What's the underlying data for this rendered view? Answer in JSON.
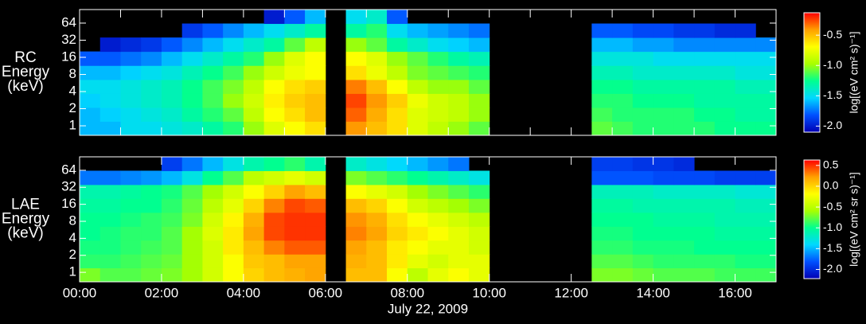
{
  "chart_data": [
    {
      "type": "heatmap",
      "ylabel": [
        "RC",
        "Energy",
        "(keV)"
      ],
      "colorbar_label": "log[(eV cm² s)⁻¹]",
      "colormap": [
        "#0000b4",
        "#0050ff",
        "#00d8ff",
        "#00ff90",
        "#a8ff00",
        "#ffff00",
        "#ffa000",
        "#ff0000"
      ],
      "xbins": [
        0,
        0.5,
        1,
        1.5,
        2,
        2.5,
        3,
        3.5,
        4,
        4.5,
        5,
        5.5,
        6,
        6.5,
        7,
        7.5,
        8,
        8.5,
        9,
        9.5,
        10,
        10.5,
        11,
        11.5,
        12,
        12.5,
        13,
        13.5,
        14,
        14.5,
        15,
        15.5,
        16,
        16.5,
        17
      ],
      "xlim": [
        0,
        17
      ],
      "xticks": [
        0,
        1,
        2,
        3,
        4,
        5,
        6,
        7,
        8,
        9,
        10,
        11,
        12,
        13,
        14,
        15,
        16,
        17
      ],
      "ybins": [
        0.68,
        1.2,
        2.1,
        3.7,
        6.5,
        11.5,
        20.3,
        35.7,
        62.9,
        110.7
      ],
      "ylim": [
        0.68,
        110.7
      ],
      "ylog": true,
      "yticks": [
        1,
        2,
        4,
        8,
        16,
        32,
        64
      ],
      "zlim": [
        -2.1,
        -0.13
      ],
      "zticks": [
        {
          "value": -2,
          "label": "-2.0"
        },
        -1.5,
        {
          "value": -1,
          "label": "-1.0"
        },
        -0.5
      ],
      "values": [
        [
          -1.6,
          -1.6,
          -1.5,
          -1.5,
          -1.45,
          -1.4,
          -1.3,
          -1.2,
          -1.0,
          -0.8,
          -0.7,
          -0.6,
          null,
          -0.4,
          -0.5,
          -0.6,
          -0.8,
          -0.9,
          -1.0,
          -1.1,
          null,
          null,
          null,
          null,
          null,
          -1.1,
          -1.15,
          -1.2,
          -1.2,
          -1.2,
          -1.2,
          -1.25,
          -1.25,
          -1.25
        ],
        [
          -1.6,
          -1.55,
          -1.5,
          -1.45,
          -1.4,
          -1.3,
          -1.2,
          -1.1,
          -0.9,
          -0.7,
          -0.6,
          -0.5,
          null,
          -0.3,
          -0.45,
          -0.6,
          -0.8,
          -0.85,
          -0.9,
          -1.0,
          null,
          null,
          null,
          null,
          null,
          -1.15,
          -1.2,
          -1.2,
          -1.2,
          -1.2,
          -1.25,
          -1.25,
          -1.3,
          -1.3
        ],
        [
          -1.55,
          -1.5,
          -1.45,
          -1.4,
          -1.35,
          -1.25,
          -1.15,
          -1.0,
          -0.85,
          -0.65,
          -0.55,
          -0.5,
          null,
          -0.25,
          -0.4,
          -0.55,
          -0.75,
          -0.85,
          -0.9,
          -1.0,
          null,
          null,
          null,
          null,
          null,
          -1.2,
          -1.2,
          -1.25,
          -1.25,
          -1.25,
          -1.3,
          -1.3,
          -1.3,
          -1.3
        ],
        [
          -1.5,
          -1.5,
          -1.45,
          -1.4,
          -1.35,
          -1.25,
          -1.15,
          -1.05,
          -0.9,
          -0.7,
          -0.6,
          -0.55,
          null,
          -0.35,
          -0.5,
          -0.7,
          -0.9,
          -1.0,
          -1.0,
          -1.1,
          null,
          null,
          null,
          null,
          null,
          -1.25,
          -1.25,
          -1.3,
          -1.3,
          -1.3,
          -1.3,
          -1.3,
          -1.35,
          -1.35
        ],
        [
          -1.6,
          -1.6,
          -1.55,
          -1.5,
          -1.45,
          -1.35,
          -1.25,
          -1.15,
          -1.0,
          -0.85,
          -0.75,
          -0.7,
          null,
          -0.6,
          -0.75,
          -0.9,
          -1.05,
          -1.1,
          -1.15,
          -1.2,
          null,
          null,
          null,
          null,
          null,
          -1.35,
          -1.35,
          -1.4,
          -1.4,
          -1.4,
          -1.4,
          -1.4,
          -1.45,
          -1.45
        ],
        [
          -1.8,
          -1.8,
          -1.75,
          -1.7,
          -1.6,
          -1.5,
          -1.4,
          -1.3,
          -1.2,
          -1.0,
          -0.8,
          -0.7,
          null,
          -0.7,
          -0.8,
          -1.0,
          -1.1,
          -1.2,
          -1.3,
          -1.35,
          null,
          null,
          null,
          null,
          null,
          -1.45,
          -1.45,
          -1.45,
          -1.5,
          -1.5,
          -1.5,
          -1.5,
          -1.5,
          -1.5
        ],
        [
          null,
          -2.0,
          -1.95,
          -1.9,
          -1.8,
          -1.7,
          -1.6,
          -1.5,
          -1.4,
          -1.3,
          -1.1,
          -0.9,
          null,
          -1.0,
          -1.1,
          -1.3,
          -1.4,
          -1.5,
          -1.55,
          -1.6,
          null,
          null,
          null,
          null,
          null,
          -1.6,
          -1.6,
          -1.65,
          -1.65,
          -1.7,
          -1.7,
          -1.7,
          -1.7,
          -1.7
        ],
        [
          null,
          null,
          null,
          null,
          null,
          -1.9,
          -1.8,
          -1.7,
          -1.6,
          -1.5,
          -1.4,
          -1.3,
          null,
          -1.3,
          -1.2,
          -1.5,
          -1.6,
          -1.65,
          -1.7,
          -1.75,
          null,
          null,
          null,
          null,
          null,
          -1.8,
          -1.8,
          -1.85,
          -1.85,
          -1.9,
          -1.9,
          -1.95,
          -1.95,
          null
        ],
        [
          null,
          null,
          null,
          null,
          null,
          null,
          null,
          null,
          null,
          -2.0,
          -1.8,
          -1.6,
          null,
          -1.5,
          -1.4,
          -1.8,
          null,
          null,
          null,
          null,
          null,
          null,
          null,
          null,
          null,
          null,
          null,
          null,
          null,
          null,
          null,
          null,
          null,
          null
        ]
      ]
    },
    {
      "type": "heatmap",
      "ylabel": [
        "LAE",
        "Energy",
        "(keV)"
      ],
      "xlabel": "July 22, 2009",
      "colorbar_label": "log[(eV cm² sr s)⁻¹]",
      "colormap": [
        "#0000b4",
        "#0050ff",
        "#00d8ff",
        "#00ff90",
        "#a8ff00",
        "#ffff00",
        "#ffa000",
        "#ff0000"
      ],
      "xbins": [
        0,
        0.5,
        1,
        1.5,
        2,
        2.5,
        3,
        3.5,
        4,
        4.5,
        5,
        5.5,
        6,
        6.5,
        7,
        7.5,
        8,
        8.5,
        9,
        9.5,
        10,
        10.5,
        11,
        11.5,
        12,
        12.5,
        13,
        13.5,
        14,
        14.5,
        15,
        15.5,
        16,
        16.5,
        17
      ],
      "xlim": [
        0,
        17
      ],
      "xticks": [
        {
          "value": 0,
          "label": "00:00"
        },
        {
          "value": 2,
          "label": "02:00"
        },
        {
          "value": 4,
          "label": "04:00"
        },
        {
          "value": 6,
          "label": "06:00"
        },
        {
          "value": 8,
          "label": "08:00"
        },
        {
          "value": 10,
          "label": "10:00"
        },
        {
          "value": 12,
          "label": "12:00"
        },
        {
          "value": 14,
          "label": "14:00"
        },
        {
          "value": 16,
          "label": "16:00"
        }
      ],
      "ybins": [
        0.68,
        1.2,
        2.1,
        3.7,
        6.5,
        11.5,
        20.3,
        35.7,
        62.9,
        110.7
      ],
      "ylim": [
        0.68,
        110.7
      ],
      "ylog": true,
      "yticks": [
        1,
        2,
        4,
        8,
        16,
        32,
        64
      ],
      "zlim": [
        -2.22,
        0.63
      ],
      "zticks": [
        {
          "value": -2,
          "label": "-2.0"
        },
        -1.5,
        {
          "value": -1,
          "label": "-1.0"
        },
        -0.5,
        {
          "value": 0,
          "label": "0.0"
        },
        0.5
      ],
      "values": [
        [
          -0.7,
          -0.8,
          -0.8,
          -0.75,
          -0.7,
          -0.6,
          -0.4,
          -0.2,
          0.0,
          0.1,
          0.15,
          0.2,
          null,
          0.1,
          0.1,
          -0.2,
          -0.5,
          -0.3,
          -0.2,
          -0.3,
          null,
          null,
          null,
          null,
          null,
          -0.7,
          -0.7,
          -0.75,
          -0.8,
          -0.8,
          -0.8,
          -0.85,
          -0.85,
          -0.85
        ],
        [
          -0.9,
          -0.9,
          -0.85,
          -0.8,
          -0.75,
          -0.6,
          -0.4,
          -0.2,
          0.05,
          0.1,
          0.2,
          0.2,
          null,
          0.15,
          0.1,
          -0.1,
          -0.3,
          -0.4,
          -0.3,
          -0.3,
          null,
          null,
          null,
          null,
          null,
          -0.8,
          -0.8,
          -0.85,
          -0.9,
          -0.9,
          -0.9,
          -0.9,
          -0.95,
          -0.95
        ],
        [
          -0.95,
          -0.95,
          -0.9,
          -0.85,
          -0.8,
          -0.6,
          -0.4,
          -0.1,
          0.1,
          0.3,
          0.4,
          0.4,
          null,
          0.2,
          0.1,
          -0.1,
          -0.2,
          -0.3,
          -0.3,
          -0.4,
          null,
          null,
          null,
          null,
          null,
          -0.9,
          -0.9,
          -0.95,
          -0.95,
          -0.95,
          -1.0,
          -1.0,
          -1.0,
          -1.0
        ],
        [
          -1.0,
          -0.95,
          -0.9,
          -0.9,
          -0.8,
          -0.6,
          -0.35,
          -0.1,
          0.2,
          0.45,
          0.5,
          0.5,
          null,
          0.3,
          0.2,
          0.0,
          -0.1,
          -0.2,
          -0.3,
          -0.4,
          null,
          null,
          null,
          null,
          null,
          -0.95,
          -0.95,
          -1.0,
          -1.0,
          -1.0,
          -1.0,
          -1.05,
          -1.05,
          -1.05
        ],
        [
          -1.0,
          -1.0,
          -0.95,
          -0.9,
          -0.85,
          -0.7,
          -0.4,
          -0.15,
          0.15,
          0.45,
          0.5,
          0.5,
          null,
          0.25,
          0.15,
          -0.05,
          -0.2,
          -0.3,
          -0.4,
          -0.5,
          null,
          null,
          null,
          null,
          null,
          -1.0,
          -1.0,
          -1.0,
          -1.05,
          -1.05,
          -1.05,
          -1.1,
          -1.1,
          -1.1
        ],
        [
          -1.05,
          -1.05,
          -1.0,
          -1.0,
          -0.9,
          -0.75,
          -0.5,
          -0.3,
          0.0,
          0.3,
          0.45,
          0.4,
          null,
          0.1,
          0.0,
          -0.2,
          -0.4,
          -0.5,
          -0.6,
          -0.7,
          null,
          null,
          null,
          null,
          null,
          -1.05,
          -1.05,
          -1.1,
          -1.1,
          -1.1,
          -1.1,
          -1.1,
          -1.15,
          -1.15
        ],
        [
          -1.1,
          -1.1,
          -1.05,
          -1.0,
          -0.95,
          -0.8,
          -0.6,
          -0.4,
          -0.2,
          0.0,
          0.2,
          0.1,
          null,
          -0.2,
          -0.3,
          -0.4,
          -0.6,
          -0.7,
          -0.8,
          -0.9,
          null,
          null,
          null,
          null,
          null,
          -1.15,
          -1.15,
          -1.15,
          -1.2,
          -1.2,
          -1.2,
          -1.2,
          -1.25,
          -1.25
        ],
        [
          -1.7,
          -1.7,
          -1.65,
          -1.6,
          -1.5,
          -1.3,
          -1.0,
          -0.8,
          -0.5,
          -0.4,
          -0.3,
          -0.4,
          null,
          -0.7,
          -0.8,
          -0.9,
          -1.0,
          -1.1,
          -1.2,
          -1.3,
          null,
          null,
          null,
          null,
          null,
          -1.8,
          -1.8,
          -1.8,
          -1.85,
          -1.85,
          -1.85,
          -1.9,
          -1.9,
          -1.9
        ],
        [
          null,
          null,
          null,
          null,
          -1.9,
          -1.7,
          -1.5,
          -1.3,
          -1.1,
          -1.0,
          -0.9,
          -1.1,
          null,
          -1.2,
          -1.3,
          -1.4,
          -1.5,
          -1.6,
          -1.7,
          null,
          null,
          null,
          null,
          null,
          null,
          -1.9,
          -1.9,
          -1.95,
          -1.95,
          -2.0,
          null,
          null,
          null,
          null
        ]
      ]
    }
  ]
}
